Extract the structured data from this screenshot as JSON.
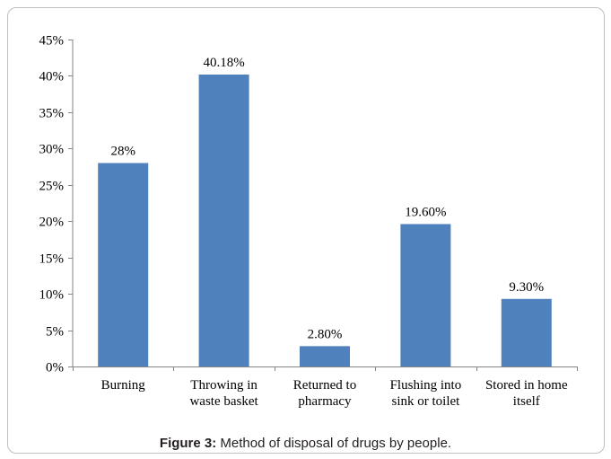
{
  "caption": {
    "label": "Figure 3:",
    "text": " Method of disposal of drugs by people."
  },
  "colors": {
    "bar": "#4f81bd",
    "axis": "#868686",
    "text": "#000000"
  },
  "chart_data": {
    "type": "bar",
    "categories": [
      [
        "Burning"
      ],
      [
        "Throwing in",
        "waste basket"
      ],
      [
        "Returned to",
        "pharmacy"
      ],
      [
        "Flushing into",
        "sink or toilet"
      ],
      [
        "Stored in home",
        "itself"
      ]
    ],
    "values": [
      28,
      40.18,
      2.8,
      19.6,
      9.3
    ],
    "data_labels": [
      "28%",
      "40.18%",
      "2.80%",
      "19.60%",
      "9.30%"
    ],
    "y_ticks": [
      "0%",
      "5%",
      "10%",
      "15%",
      "20%",
      "25%",
      "30%",
      "35%",
      "40%",
      "45%"
    ],
    "ylim": [
      0,
      45
    ],
    "grid": false,
    "legend": "none"
  }
}
